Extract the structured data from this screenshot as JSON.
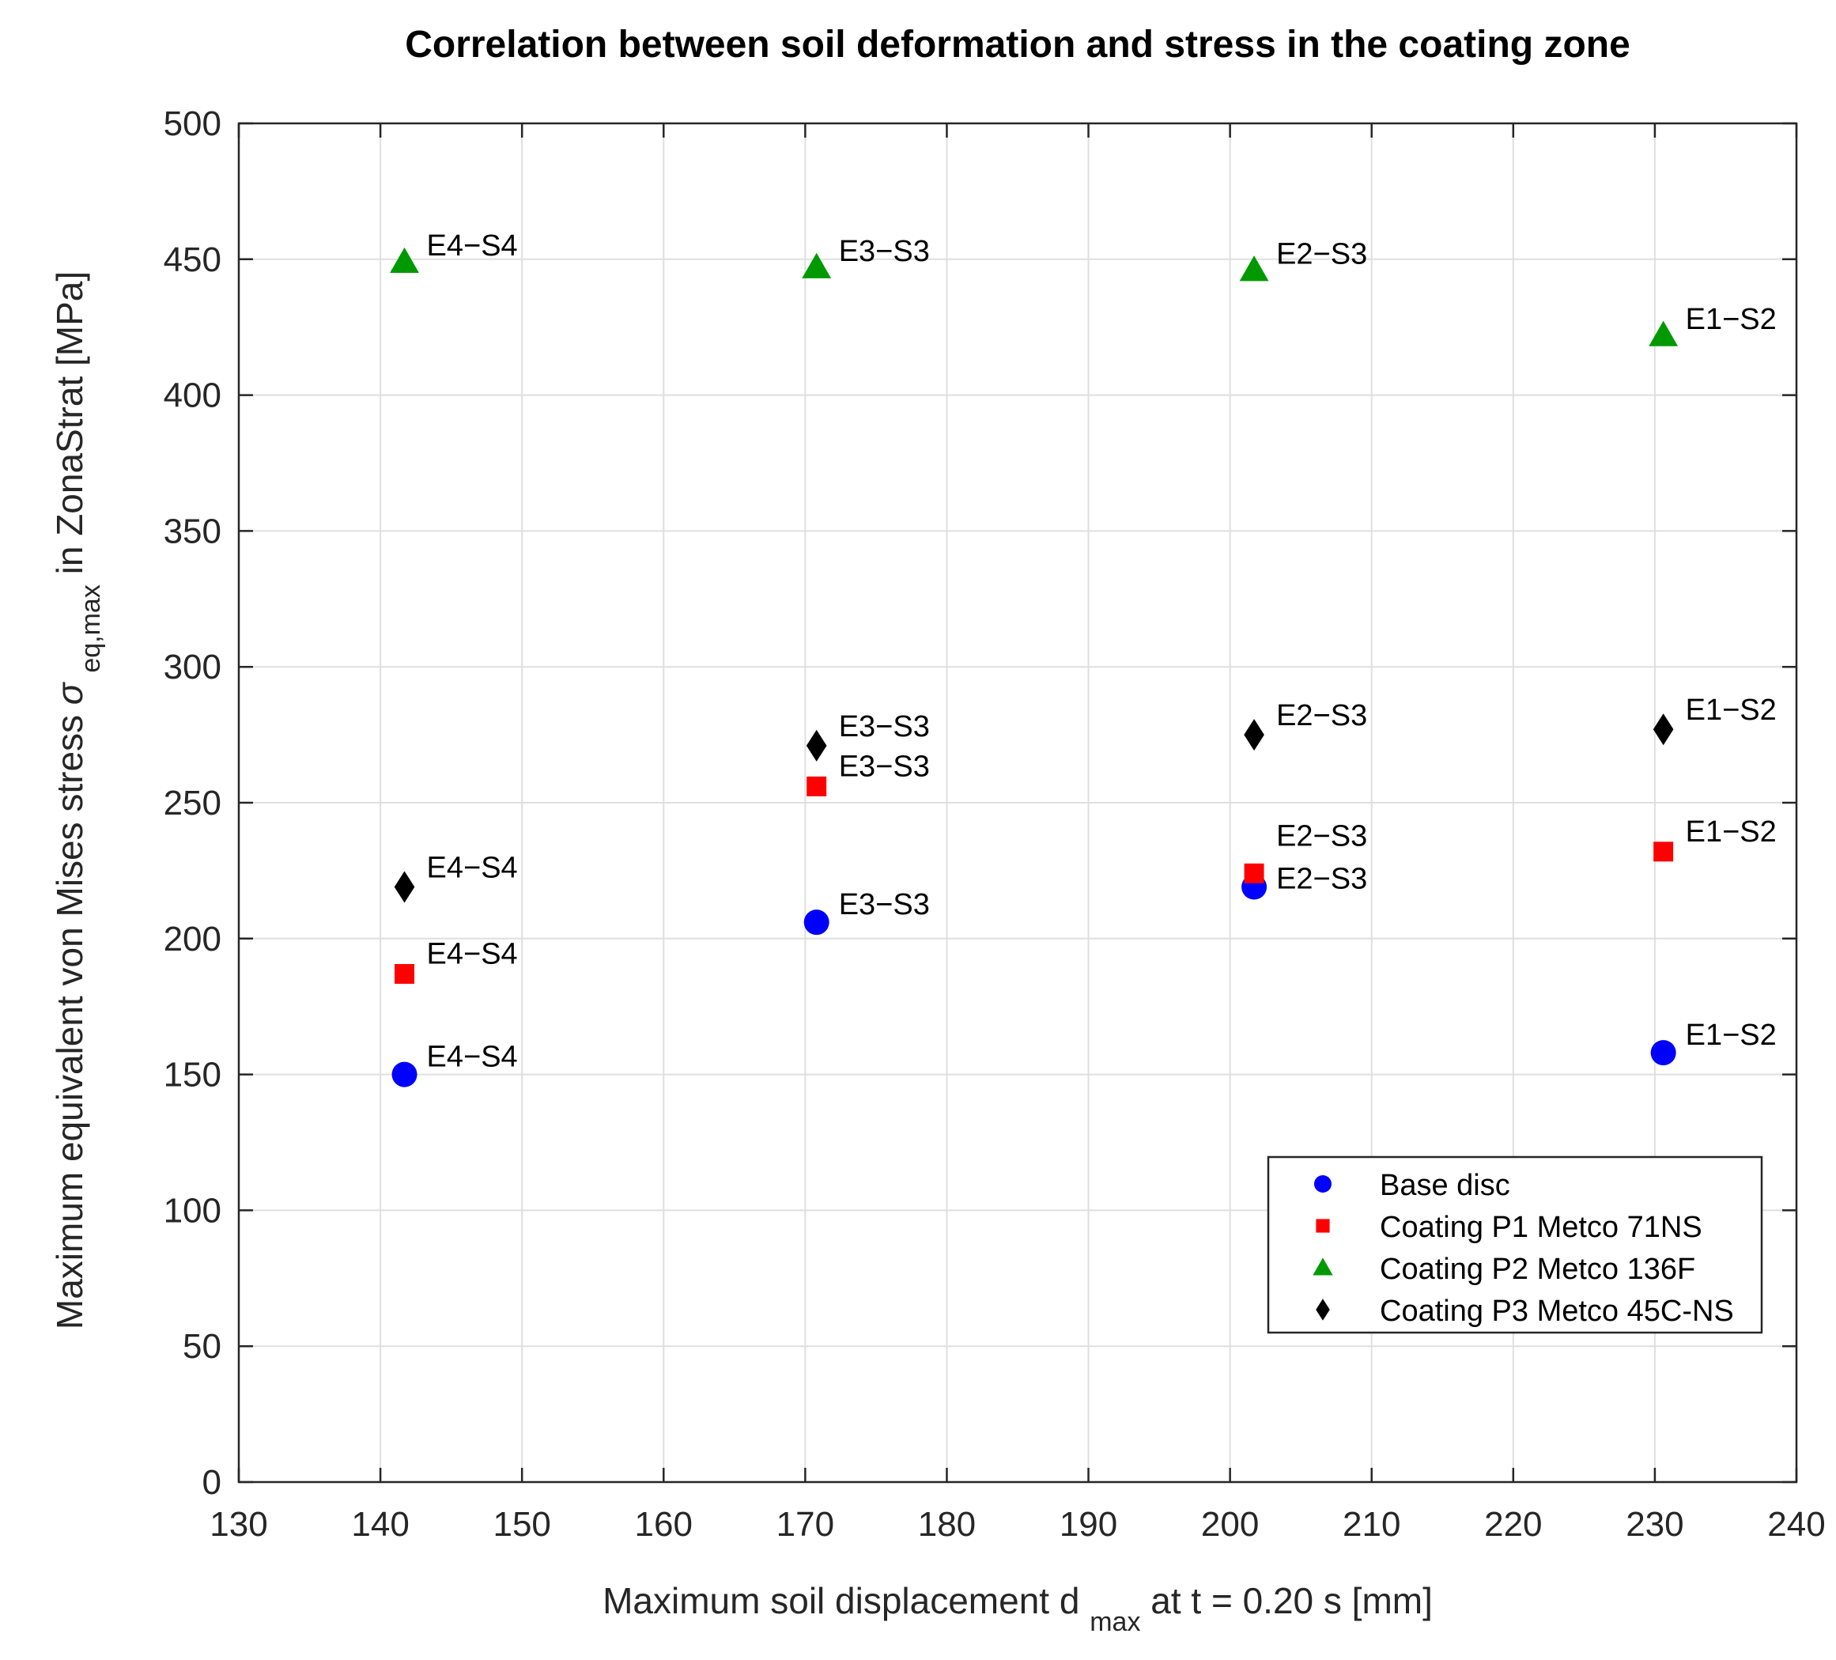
{
  "chart_data": {
    "type": "scatter",
    "title": "Correlation between soil deformation and stress in the coating zone",
    "xlabel": {
      "prefix": "Maximum soil displacement d",
      "subscript": "max",
      "suffix": " at t = 0.20 s [mm]"
    },
    "ylabel": {
      "prefix": "Maximum equivalent von Mises stress ",
      "symbol": "σ",
      "subscript": "eq,max",
      "suffix": " in ZonaStrat [MPa]"
    },
    "xlim": [
      130,
      240
    ],
    "ylim": [
      0,
      500
    ],
    "xticks": [
      130,
      140,
      150,
      160,
      170,
      180,
      190,
      200,
      210,
      220,
      230,
      240
    ],
    "yticks": [
      0,
      50,
      100,
      150,
      200,
      250,
      300,
      350,
      400,
      450,
      500
    ],
    "grid": true,
    "legend_position": "lower-right",
    "series": [
      {
        "name": "Base disc",
        "marker": "circle",
        "color": "#0000ff",
        "points": [
          {
            "x": 141.7,
            "y": 150,
            "label": "E4−S4"
          },
          {
            "x": 170.8,
            "y": 206,
            "label": "E3−S3"
          },
          {
            "x": 201.7,
            "y": 219,
            "label": "E2−S3"
          },
          {
            "x": 230.6,
            "y": 158,
            "label": "E1−S2"
          }
        ]
      },
      {
        "name": "Coating P1 Metco 71NS",
        "marker": "square",
        "color": "#ff0000",
        "points": [
          {
            "x": 141.7,
            "y": 187,
            "label": "E4−S4"
          },
          {
            "x": 170.8,
            "y": 256,
            "label": "E3−S3"
          },
          {
            "x": 201.7,
            "y": 224,
            "label": "E2−S3"
          },
          {
            "x": 230.6,
            "y": 232,
            "label": "E1−S2"
          }
        ]
      },
      {
        "name": "Coating P2 Metco 136F",
        "marker": "triangle",
        "color": "#009900",
        "points": [
          {
            "x": 141.7,
            "y": 449,
            "label": "E4−S4"
          },
          {
            "x": 170.8,
            "y": 447,
            "label": "E3−S3"
          },
          {
            "x": 201.7,
            "y": 446,
            "label": "E2−S3"
          },
          {
            "x": 230.6,
            "y": 422,
            "label": "E1−S2"
          }
        ]
      },
      {
        "name": "Coating P3 Metco 45C-NS",
        "marker": "diamond",
        "color": "#000000",
        "points": [
          {
            "x": 141.7,
            "y": 219,
            "label": "E4−S4"
          },
          {
            "x": 170.8,
            "y": 271,
            "label": "E3−S3"
          },
          {
            "x": 201.7,
            "y": 275,
            "label": "E2−S3"
          },
          {
            "x": 230.6,
            "y": 277,
            "label": "E1−S2"
          }
        ]
      }
    ]
  }
}
